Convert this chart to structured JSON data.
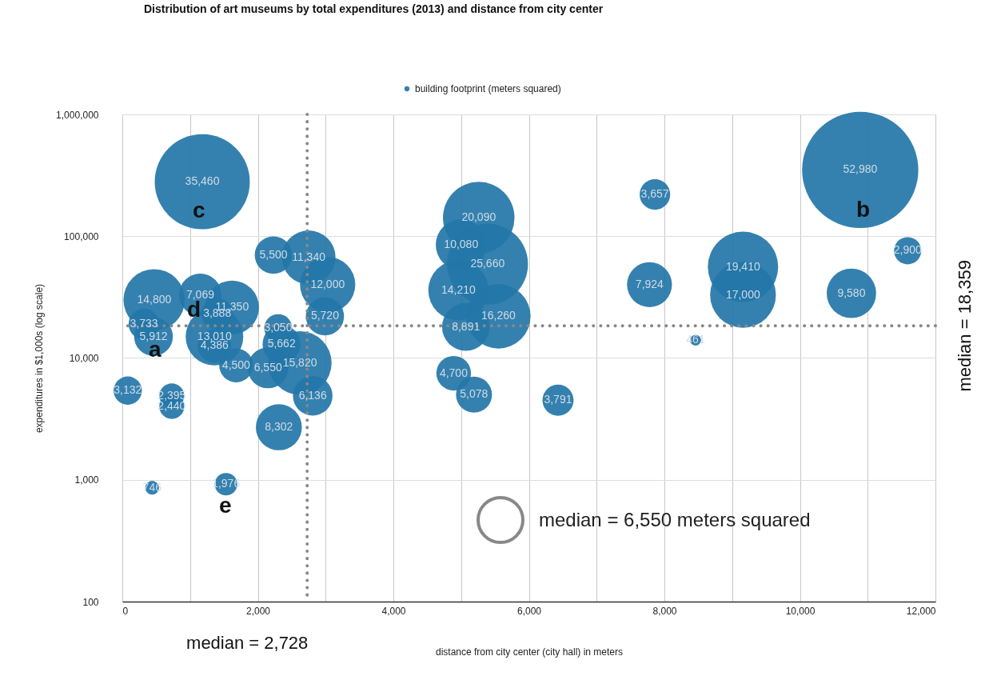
{
  "chart_data": {
    "type": "bubble",
    "title": "Distribution of art museums by total expenditures (2013) and distance from city center",
    "xlabel": "distance from city center (city hall) in meters",
    "ylabel": "expenditures in $1,000s (log scale)",
    "xlim": [
      0,
      12000
    ],
    "xticks": [
      0,
      {
        "value": 1000,
        "label": null
      },
      {
        "value": 2000,
        "label": "2,000"
      },
      {
        "value": 3000,
        "label": null
      },
      {
        "value": 4000,
        "label": "4,000"
      },
      {
        "value": 5000,
        "label": null
      },
      {
        "value": 6000,
        "label": "6,000"
      },
      {
        "value": 7000,
        "label": null
      },
      {
        "value": 8000,
        "label": "8,000"
      },
      {
        "value": 9000,
        "label": null
      },
      {
        "value": 10000,
        "label": "10,000"
      },
      {
        "value": 11000,
        "label": null
      },
      {
        "value": 12000,
        "label": "12,000"
      }
    ],
    "ylim": [
      100,
      1000000
    ],
    "yticks": [
      100,
      {
        "value": 1000,
        "label": "1,000"
      },
      {
        "value": 10000,
        "label": "10,000"
      },
      {
        "value": 100000,
        "label": "100,000"
      },
      {
        "value": 1000000,
        "label": "1,000,000"
      }
    ],
    "log": true,
    "grid": true,
    "legend": "top",
    "series": [
      {
        "name": "building footprint (meters squared)",
        "color": "#2376a8",
        "x": [
          1180,
          10890,
          5260,
          7860,
          11590,
          2230,
          2750,
          5000,
          5390,
          4960,
          5550,
          5070,
          4890,
          5190,
          6430,
          7780,
          9160,
          9160,
          10760,
          8460,
          470,
          1150,
          1620,
          1400,
          320,
          460,
          1360,
          1360,
          2300,
          2350,
          1680,
          2150,
          2620,
          3030,
          2990,
          2810,
          2310,
          80,
          730,
          730,
          440,
          1530
        ],
        "values": [
          280000,
          350000,
          142000,
          220000,
          76000,
          70000,
          67000,
          85000,
          59000,
          36000,
          22000,
          18000,
          7500,
          5000,
          4500,
          40000,
          56000,
          33000,
          34000,
          14000,
          30000,
          33000,
          26000,
          23000,
          19000,
          15000,
          15000,
          12600,
          17600,
          13000,
          8700,
          8300,
          9100,
          40000,
          22000,
          4900,
          2700,
          5400,
          4900,
          4000,
          860,
          920
        ],
        "sizes": [
          35460,
          52980,
          20090,
          3657,
          2900,
          5500,
          11340,
          10080,
          25660,
          14210,
          16260,
          8891,
          4700,
          5078,
          3791,
          7924,
          19410,
          17000,
          9580,
          461,
          14800,
          7069,
          11350,
          3888,
          3733,
          5912,
          13010,
          4386,
          3050,
          5662,
          4500,
          6550,
          15820,
          12000,
          5720,
          6136,
          8302,
          3132,
          2395,
          2440,
          746,
          1976
        ],
        "value_labels": [
          "35,460",
          "52,980",
          "20,090",
          "3,657",
          "2,900",
          "5,500",
          "11,340",
          "10,080",
          "25,660",
          "14,210",
          "16,260",
          "8,891",
          "4,700",
          "5,078",
          "3,791",
          "7,924",
          "19,410",
          "17,000",
          "9,580",
          "461",
          "14,800",
          "7,069",
          "11,350",
          "3,888",
          "3,733",
          "5,912",
          "13,010",
          "4,386",
          "3,050",
          "5,662",
          "4,500",
          "6,550",
          "15,820",
          "12,000",
          "5,720",
          "6,136",
          "8,302",
          "3,132",
          "2,395",
          "2,440",
          "746",
          "1,976"
        ]
      }
    ],
    "ref_lines": [
      {
        "axis": "x",
        "value": 2728,
        "label": "median = 2,728",
        "color": "#888888",
        "line_style": "dotted"
      },
      {
        "axis": "y",
        "value": 18359,
        "label": "median = 18,359",
        "color": "#888888",
        "line_style": "dotted"
      }
    ],
    "annotations": [
      "a",
      "b",
      "c",
      "d",
      "e",
      "median = 6,550 meters squared"
    ]
  }
}
